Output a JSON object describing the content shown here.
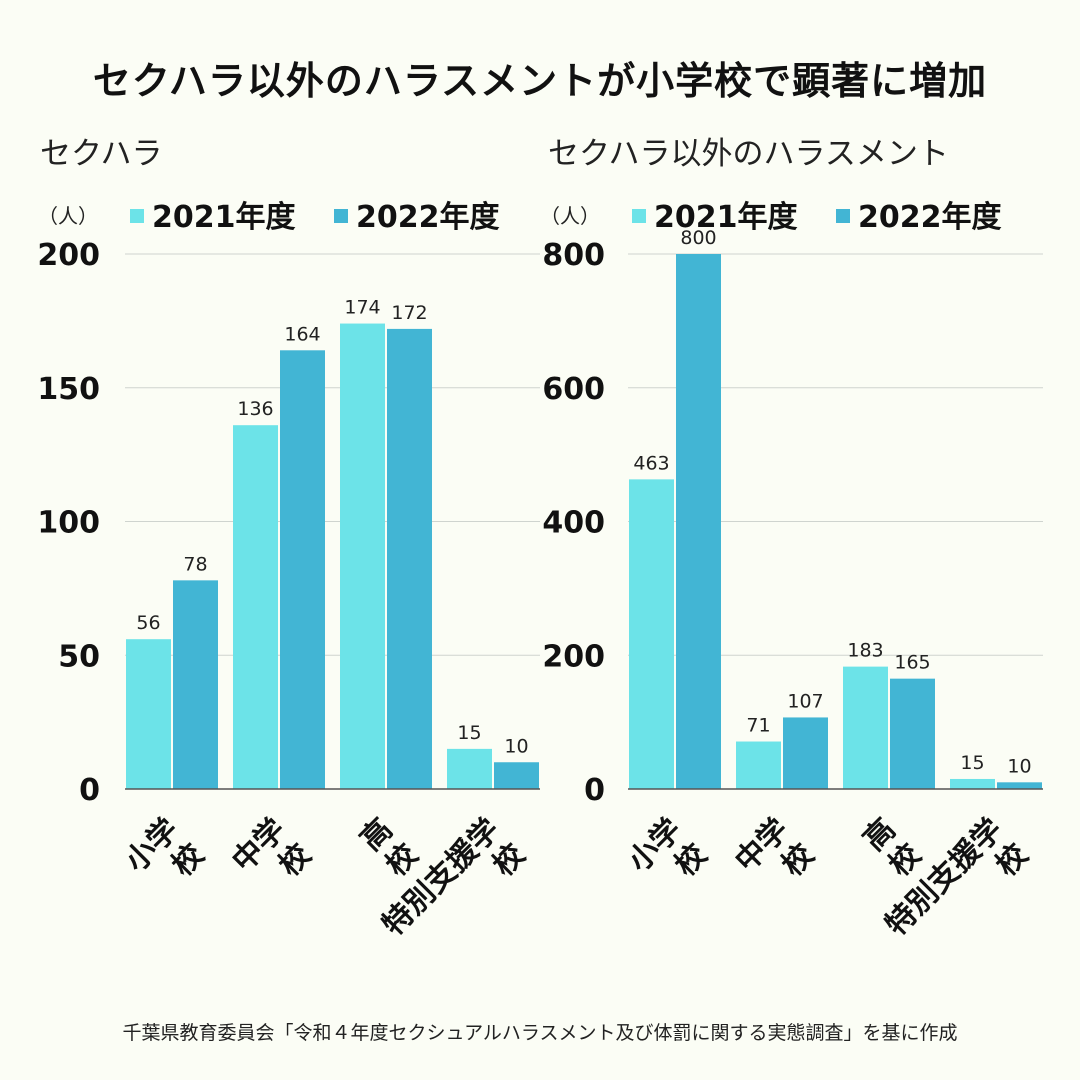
{
  "title": "セクハラ以外のハラスメントが小学校で顕著に増加",
  "source": "千葉県教育委員会「令和４年度セクシュアルハラスメント及び体罰に関する実態調査」を基に作成",
  "colors": {
    "series_2021": "#6ce3e8",
    "series_2022": "#42b5d4",
    "grid": "#cfd4cf",
    "axis": "#555555"
  },
  "chart_data": [
    {
      "type": "bar",
      "title": "セクハラ",
      "ylabel": "（人）",
      "categories": [
        "小学校",
        "中学校",
        "高校",
        "特別支援学校"
      ],
      "category_lines": [
        [
          "小学",
          "校"
        ],
        [
          "中学",
          "校"
        ],
        [
          "高",
          "校"
        ],
        [
          "特別支援学",
          "校"
        ]
      ],
      "series": [
        {
          "name": "2021年度",
          "values": [
            56,
            136,
            174,
            15
          ]
        },
        {
          "name": "2022年度",
          "values": [
            78,
            164,
            172,
            10
          ]
        }
      ],
      "ylim": [
        0,
        200
      ],
      "yticks": [
        0,
        50,
        100,
        150,
        200
      ],
      "grid": true,
      "legend": "top"
    },
    {
      "type": "bar",
      "title": "セクハラ以外のハラスメント",
      "ylabel": "（人）",
      "categories": [
        "小学校",
        "中学校",
        "高校",
        "特別支援学校"
      ],
      "category_lines": [
        [
          "小学",
          "校"
        ],
        [
          "中学",
          "校"
        ],
        [
          "高",
          "校"
        ],
        [
          "特別支援学",
          "校"
        ]
      ],
      "series": [
        {
          "name": "2021年度",
          "values": [
            463,
            71,
            183,
            15
          ]
        },
        {
          "name": "2022年度",
          "values": [
            800,
            107,
            165,
            10
          ]
        }
      ],
      "ylim": [
        0,
        800
      ],
      "yticks": [
        0,
        200,
        400,
        600,
        800
      ],
      "grid": true,
      "legend": "top"
    }
  ]
}
